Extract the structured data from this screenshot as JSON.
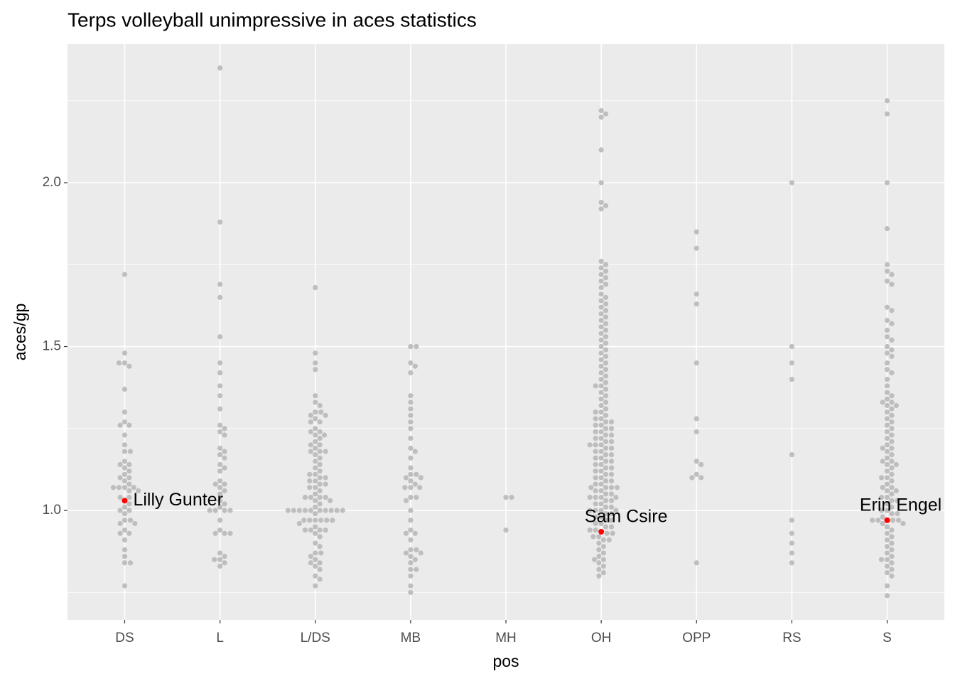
{
  "chart_data": {
    "type": "beeswarm",
    "title": "Terps volleyball unimpressive in aces statistics",
    "x_label": "pos",
    "y_label": "aces/gp",
    "categories": [
      "DS",
      "L",
      "L/DS",
      "MB",
      "MH",
      "OH",
      "OPP",
      "RS",
      "S"
    ],
    "color": "#bebebe",
    "values": [
      [
        1.72,
        1.48,
        1.45,
        1.44,
        1.45,
        1.37,
        1.3,
        1.27,
        1.26,
        1.26,
        1.23,
        1.2,
        1.18,
        1.18,
        1.15,
        1.14,
        1.14,
        1.13,
        1.12,
        1.11,
        1.1,
        1.1,
        1.09,
        1.08,
        1.07,
        1.07,
        1.07,
        1.07,
        1.06,
        1.06,
        1.04,
        1.04,
        1.02,
        1.01,
        1.0,
        1.0,
        0.99,
        0.97,
        0.97,
        0.96,
        0.96,
        0.94,
        0.93,
        0.93,
        0.91,
        0.88,
        0.86,
        0.84,
        0.84,
        0.77
      ],
      [
        2.35,
        1.88,
        1.69,
        1.65,
        1.53,
        1.45,
        1.42,
        1.38,
        1.35,
        1.31,
        1.26,
        1.25,
        1.24,
        1.23,
        1.19,
        1.18,
        1.17,
        1.16,
        1.14,
        1.13,
        1.12,
        1.09,
        1.08,
        1.08,
        1.07,
        1.06,
        1.05,
        1.03,
        1.02,
        1.01,
        1.0,
        1.0,
        1.0,
        1.0,
        0.97,
        0.94,
        0.93,
        0.93,
        0.93,
        0.87,
        0.86,
        0.85,
        0.85,
        0.84,
        0.83
      ],
      [
        1.68,
        1.48,
        1.45,
        1.43,
        1.35,
        1.33,
        1.32,
        1.3,
        1.3,
        1.29,
        1.29,
        1.28,
        1.27,
        1.27,
        1.25,
        1.24,
        1.24,
        1.23,
        1.23,
        1.22,
        1.21,
        1.2,
        1.2,
        1.19,
        1.18,
        1.18,
        1.18,
        1.17,
        1.16,
        1.15,
        1.14,
        1.13,
        1.12,
        1.11,
        1.11,
        1.1,
        1.1,
        1.09,
        1.09,
        1.08,
        1.08,
        1.07,
        1.07,
        1.06,
        1.05,
        1.04,
        1.04,
        1.04,
        1.04,
        1.03,
        1.03,
        1.02,
        1.01,
        1.0,
        1.0,
        1.0,
        1.0,
        1.0,
        1.0,
        1.0,
        1.0,
        1.0,
        1.0,
        0.99,
        0.97,
        0.97,
        0.97,
        0.97,
        0.97,
        0.97,
        0.96,
        0.95,
        0.94,
        0.94,
        0.94,
        0.94,
        0.93,
        0.92,
        0.9,
        0.89,
        0.87,
        0.87,
        0.86,
        0.85,
        0.84,
        0.84,
        0.83,
        0.82,
        0.8,
        0.79,
        0.77
      ],
      [
        1.5,
        1.5,
        1.45,
        1.44,
        1.42,
        1.35,
        1.33,
        1.31,
        1.29,
        1.27,
        1.25,
        1.22,
        1.19,
        1.18,
        1.16,
        1.13,
        1.11,
        1.11,
        1.1,
        1.1,
        1.09,
        1.08,
        1.07,
        1.07,
        1.07,
        1.04,
        1.04,
        1.03,
        1.0,
        0.97,
        0.94,
        0.93,
        0.93,
        0.91,
        0.88,
        0.88,
        0.87,
        0.87,
        0.86,
        0.85,
        0.84,
        0.82,
        0.82,
        0.8,
        0.77,
        0.75
      ],
      [
        1.04,
        1.04,
        0.94
      ],
      [
        2.22,
        2.21,
        2.2,
        2.1,
        2.0,
        1.94,
        1.93,
        1.92,
        1.76,
        1.75,
        1.74,
        1.73,
        1.72,
        1.71,
        1.7,
        1.69,
        1.68,
        1.66,
        1.65,
        1.64,
        1.63,
        1.62,
        1.61,
        1.6,
        1.59,
        1.58,
        1.57,
        1.56,
        1.55,
        1.54,
        1.53,
        1.52,
        1.51,
        1.5,
        1.49,
        1.48,
        1.47,
        1.46,
        1.45,
        1.44,
        1.43,
        1.42,
        1.41,
        1.4,
        1.39,
        1.38,
        1.38,
        1.37,
        1.36,
        1.35,
        1.34,
        1.33,
        1.32,
        1.31,
        1.3,
        1.3,
        1.29,
        1.28,
        1.28,
        1.27,
        1.27,
        1.26,
        1.26,
        1.25,
        1.25,
        1.24,
        1.24,
        1.23,
        1.23,
        1.22,
        1.22,
        1.21,
        1.21,
        1.2,
        1.2,
        1.2,
        1.19,
        1.19,
        1.18,
        1.18,
        1.17,
        1.17,
        1.16,
        1.16,
        1.15,
        1.15,
        1.14,
        1.14,
        1.13,
        1.13,
        1.12,
        1.12,
        1.11,
        1.11,
        1.1,
        1.1,
        1.09,
        1.09,
        1.08,
        1.08,
        1.07,
        1.07,
        1.07,
        1.07,
        1.06,
        1.06,
        1.05,
        1.05,
        1.04,
        1.04,
        1.04,
        1.04,
        1.03,
        1.03,
        1.02,
        1.02,
        1.01,
        1.01,
        1.0,
        1.0,
        1.0,
        1.0,
        0.99,
        0.99,
        0.98,
        0.98,
        0.97,
        0.97,
        0.96,
        0.96,
        0.95,
        0.95,
        0.94,
        0.94,
        0.93,
        0.93,
        0.92,
        0.92,
        0.91,
        0.91,
        0.9,
        0.89,
        0.88,
        0.87,
        0.86,
        0.85,
        0.85,
        0.84,
        0.83,
        0.82,
        0.81,
        0.8
      ],
      [
        1.85,
        1.8,
        1.66,
        1.63,
        1.45,
        1.28,
        1.24,
        1.15,
        1.14,
        1.11,
        1.1,
        1.1,
        0.84
      ],
      [
        2.0,
        1.5,
        1.45,
        1.4,
        1.17,
        0.97,
        0.93,
        0.9,
        0.87,
        0.84
      ],
      [
        2.25,
        2.21,
        2.0,
        1.86,
        1.75,
        1.73,
        1.72,
        1.7,
        1.69,
        1.62,
        1.61,
        1.58,
        1.57,
        1.55,
        1.53,
        1.52,
        1.5,
        1.49,
        1.48,
        1.47,
        1.45,
        1.43,
        1.42,
        1.4,
        1.38,
        1.36,
        1.35,
        1.34,
        1.33,
        1.33,
        1.32,
        1.32,
        1.31,
        1.3,
        1.29,
        1.28,
        1.27,
        1.26,
        1.25,
        1.24,
        1.23,
        1.22,
        1.21,
        1.2,
        1.19,
        1.19,
        1.18,
        1.17,
        1.16,
        1.15,
        1.15,
        1.14,
        1.14,
        1.13,
        1.12,
        1.11,
        1.1,
        1.1,
        1.09,
        1.08,
        1.07,
        1.07,
        1.06,
        1.06,
        1.05,
        1.04,
        1.04,
        1.03,
        1.03,
        1.02,
        1.01,
        1.0,
        1.0,
        0.99,
        0.99,
        0.98,
        0.97,
        0.97,
        0.97,
        0.97,
        0.96,
        0.96,
        0.95,
        0.94,
        0.93,
        0.92,
        0.91,
        0.9,
        0.89,
        0.88,
        0.87,
        0.86,
        0.85,
        0.85,
        0.84,
        0.83,
        0.82,
        0.81,
        0.8,
        0.77,
        0.74
      ]
    ],
    "highlights": [
      {
        "label": "Lilly Gunter",
        "category": "DS",
        "value": 1.03,
        "color": "#ff0000"
      },
      {
        "label": "Sam Csire",
        "category": "OH",
        "value": 0.935,
        "color": "#ff0000"
      },
      {
        "label": "Erin Engel",
        "category": "S",
        "value": 0.97,
        "color": "#ff0000"
      }
    ],
    "ylim": [
      0.666,
      2.423
    ],
    "yticks": [
      {
        "value": 1,
        "label": "1.0"
      },
      1.5,
      {
        "value": 2,
        "label": "2.0"
      }
    ],
    "minor_yticks": [
      0.75,
      1.25,
      1.75,
      2.25
    ],
    "grid": true
  }
}
